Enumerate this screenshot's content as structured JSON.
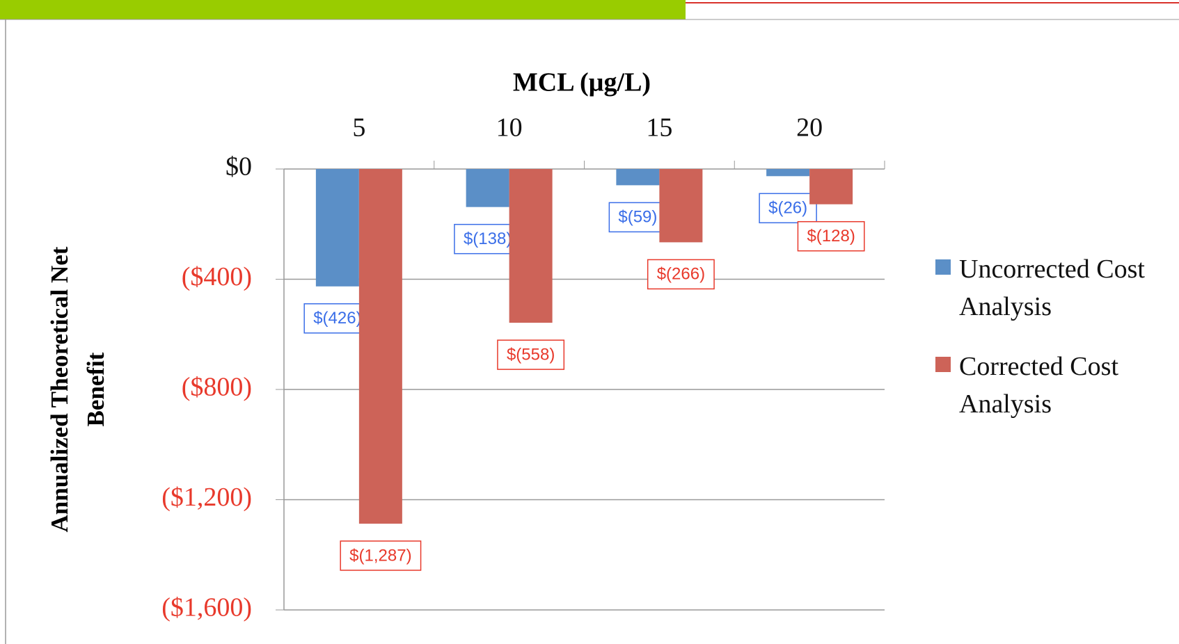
{
  "chart_data": {
    "type": "bar",
    "x_label": "MCL (µg/L)",
    "y_label": "Annualized Theoretical Net Benefit",
    "categories": [
      "5",
      "10",
      "15",
      "20"
    ],
    "series": [
      {
        "name": "Uncorrected Cost Analysis",
        "color": "#5b8fc7",
        "label_color": "#3a6ee8",
        "values": [
          -426,
          -138,
          -59,
          -26
        ],
        "value_labels": [
          "$(426)",
          "$(138)",
          "$(59)",
          "$(26)"
        ]
      },
      {
        "name": "Corrected Cost Analysis",
        "color": "#cd6358",
        "label_color": "#e8392b",
        "values": [
          -1287,
          -558,
          -266,
          -128
        ],
        "value_labels": [
          "$(1,287)",
          "$(558)",
          "$(266)",
          "$(128)"
        ]
      }
    ],
    "ylim": [
      -1600,
      0
    ],
    "yticks": [
      {
        "value": 0,
        "label": "$0"
      },
      {
        "value": -400,
        "label": "($400)"
      },
      {
        "value": -800,
        "label": "($800)"
      },
      {
        "value": -1200,
        "label": "($1,200)"
      },
      {
        "value": -1600,
        "label": "($1,600)"
      }
    ],
    "negative_tick_color": "#e8392b",
    "grid": true,
    "legend": "right"
  }
}
